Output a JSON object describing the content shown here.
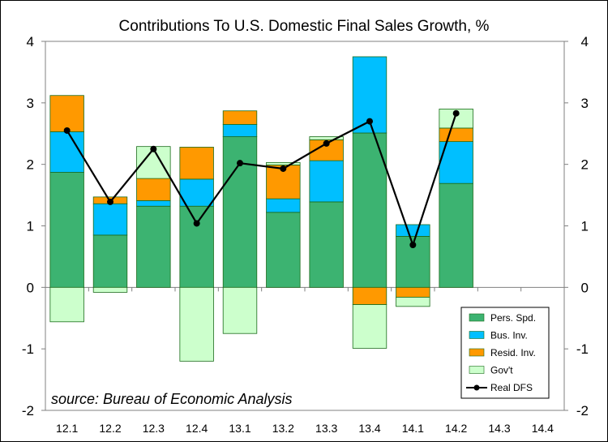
{
  "chart_data": {
    "type": "bar",
    "stacked": true,
    "title": "Contributions To U.S. Domestic Final Sales Growth, %",
    "source": "source: Bureau of Economic Analysis",
    "categories": [
      "12.1",
      "12.2",
      "12.3",
      "12.4",
      "13.1",
      "13.2",
      "13.3",
      "13.4",
      "14.1",
      "14.2",
      "14.3",
      "14.4"
    ],
    "ylim": [
      -2,
      4
    ],
    "yticks": [
      "4",
      "3",
      "2",
      "1",
      "0",
      "-1",
      "-2"
    ],
    "y2ticks": [
      "4",
      "3",
      "2",
      "1",
      "0",
      "-1",
      "-2"
    ],
    "legend_position": "bottom-right",
    "series": [
      {
        "name": "Pers. Spd.",
        "kind": "bar",
        "color": "#3cb371",
        "values": [
          1.87,
          0.85,
          1.32,
          1.32,
          2.45,
          1.22,
          1.39,
          2.51,
          0.83,
          1.69,
          null,
          null
        ]
      },
      {
        "name": "Bus. Inv.",
        "kind": "bar",
        "color": "#00bfff",
        "values": [
          0.66,
          0.51,
          0.09,
          0.44,
          0.2,
          0.22,
          0.67,
          1.24,
          0.19,
          0.68,
          null,
          null
        ]
      },
      {
        "name": "Resid. Inv.",
        "kind": "bar",
        "color": "#ff9900",
        "values": [
          0.59,
          0.11,
          0.36,
          0.52,
          0.22,
          0.55,
          0.34,
          -0.28,
          -0.16,
          0.22,
          null,
          null
        ]
      },
      {
        "name": "Gov't",
        "kind": "bar",
        "color": "#ccffcc",
        "values": [
          -0.56,
          -0.08,
          0.52,
          -1.2,
          -0.75,
          0.04,
          0.05,
          -0.71,
          -0.15,
          0.31,
          null,
          null
        ]
      },
      {
        "name": "Real DFS",
        "kind": "line",
        "color": "#000000",
        "values": [
          2.55,
          1.39,
          2.25,
          1.04,
          2.02,
          1.93,
          2.34,
          2.7,
          0.69,
          2.83,
          null,
          null
        ]
      }
    ]
  }
}
